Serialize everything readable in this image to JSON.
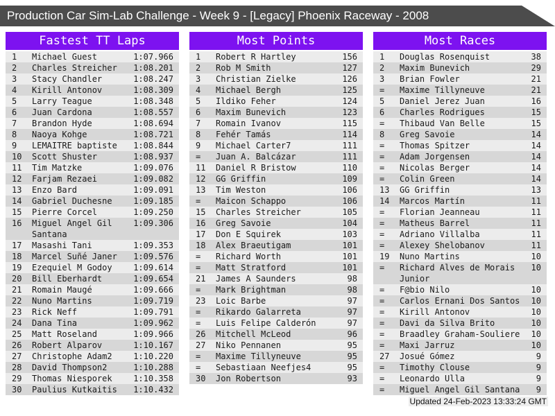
{
  "title_bar": {
    "title": "Production Car Sim-Lab Challenge - Week 9 - [Legacy] Phoenix Raceway - 2008"
  },
  "colors": {
    "accent_purple": "#7d12f0",
    "title_bar_bg": "#4c4c4c",
    "row_light": "#ececec",
    "row_dark": "#d7d7d7"
  },
  "footer": {
    "updated": "Updated 24-Feb-2023 13:33:24 GMT"
  },
  "sections": [
    {
      "title": "Fastest TT Laps",
      "rows": [
        {
          "rank": "1",
          "name": "Michael Guest",
          "value": "1:07.966"
        },
        {
          "rank": "2",
          "name": "Charles Streicher",
          "value": "1:08.201"
        },
        {
          "rank": "3",
          "name": "Stacy Chandler",
          "value": "1:08.247"
        },
        {
          "rank": "4",
          "name": "Kirill Antonov",
          "value": "1:08.309"
        },
        {
          "rank": "5",
          "name": "Larry Teague",
          "value": "1:08.348"
        },
        {
          "rank": "6",
          "name": "Juan Cardona",
          "value": "1:08.557"
        },
        {
          "rank": "7",
          "name": "Brandon Hyde",
          "value": "1:08.694"
        },
        {
          "rank": "8",
          "name": "Naoya Kohge",
          "value": "1:08.721"
        },
        {
          "rank": "9",
          "name": "LEMAITRE baptiste",
          "value": "1:08.844"
        },
        {
          "rank": "10",
          "name": "Scott Shuster",
          "value": "1:08.937"
        },
        {
          "rank": "11",
          "name": "Tim Matzke",
          "value": "1:09.076"
        },
        {
          "rank": "12",
          "name": "Farjam Rezaei",
          "value": "1:09.082"
        },
        {
          "rank": "13",
          "name": "Enzo Bard",
          "value": "1:09.091"
        },
        {
          "rank": "14",
          "name": "Gabriel Duchesne",
          "value": "1:09.185"
        },
        {
          "rank": "15",
          "name": "Pierre Corcel",
          "value": "1:09.250"
        },
        {
          "rank": "16",
          "name": "Miguel Angel Gil Santana",
          "value": "1:09.306"
        },
        {
          "rank": "17",
          "name": "Masashi Tani",
          "value": "1:09.353"
        },
        {
          "rank": "18",
          "name": "Marcel Suñé Janer",
          "value": "1:09.576"
        },
        {
          "rank": "19",
          "name": "Ezequiel M Godoy",
          "value": "1:09.614"
        },
        {
          "rank": "20",
          "name": "Bill Eberhardt",
          "value": "1:09.654"
        },
        {
          "rank": "21",
          "name": "Romain Maugé",
          "value": "1:09.666"
        },
        {
          "rank": "22",
          "name": "Nuno Martins",
          "value": "1:09.719"
        },
        {
          "rank": "23",
          "name": "Rick Neff",
          "value": "1:09.791"
        },
        {
          "rank": "24",
          "name": "Dana Tina",
          "value": "1:09.962"
        },
        {
          "rank": "25",
          "name": "Matt Roseland",
          "value": "1:09.966"
        },
        {
          "rank": "26",
          "name": "Robert Alparov",
          "value": "1:10.167"
        },
        {
          "rank": "27",
          "name": "Christophe Adam2",
          "value": "1:10.220"
        },
        {
          "rank": "28",
          "name": "David Thompson2",
          "value": "1:10.288"
        },
        {
          "rank": "29",
          "name": "Thomas Niesporek",
          "value": "1:10.358"
        },
        {
          "rank": "30",
          "name": "Paulius Kutkaitis",
          "value": "1:10.432"
        }
      ]
    },
    {
      "title": "Most Points",
      "rows": [
        {
          "rank": "1",
          "name": "Robert R Hartley",
          "value": "156"
        },
        {
          "rank": "2",
          "name": "Rob M Smith",
          "value": "127"
        },
        {
          "rank": "3",
          "name": "Christian Zielke",
          "value": "126"
        },
        {
          "rank": "4",
          "name": "Michael Bergh",
          "value": "125"
        },
        {
          "rank": "5",
          "name": "Ildiko Feher",
          "value": "124"
        },
        {
          "rank": "6",
          "name": "Maxim Bunevich",
          "value": "123"
        },
        {
          "rank": "7",
          "name": "Romain Ivanov",
          "value": "115"
        },
        {
          "rank": "8",
          "name": "Fehér Tamás",
          "value": "114"
        },
        {
          "rank": "9",
          "name": "Michael Carter7",
          "value": "111"
        },
        {
          "rank": "=",
          "name": "Juan A. Balcázar",
          "value": "111"
        },
        {
          "rank": "11",
          "name": "Daniel R Bristow",
          "value": "110"
        },
        {
          "rank": "12",
          "name": "GG Griffin",
          "value": "109"
        },
        {
          "rank": "13",
          "name": "Tim Weston",
          "value": "106"
        },
        {
          "rank": "=",
          "name": "Maicon Schappo",
          "value": "106"
        },
        {
          "rank": "15",
          "name": "Charles Streicher",
          "value": "105"
        },
        {
          "rank": "16",
          "name": "Greg Savoie",
          "value": "104"
        },
        {
          "rank": "17",
          "name": "Don E Squirek",
          "value": "103"
        },
        {
          "rank": "18",
          "name": "Alex Braeutigam",
          "value": "101"
        },
        {
          "rank": "=",
          "name": "Richard Worth",
          "value": "101"
        },
        {
          "rank": "=",
          "name": "Matt Stratford",
          "value": "101"
        },
        {
          "rank": "21",
          "name": "James A Saunders",
          "value": "98"
        },
        {
          "rank": "=",
          "name": "Mark Brightman",
          "value": "98"
        },
        {
          "rank": "23",
          "name": "Loic Barbe",
          "value": "97"
        },
        {
          "rank": "=",
          "name": "Rikardo Galarreta",
          "value": "97"
        },
        {
          "rank": "=",
          "name": "Luis Felipe Calderón",
          "value": "97"
        },
        {
          "rank": "26",
          "name": "Mitchell McLeod",
          "value": "96"
        },
        {
          "rank": "27",
          "name": "Niko Pennanen",
          "value": "95"
        },
        {
          "rank": "=",
          "name": "Maxime Tillyneuve",
          "value": "95"
        },
        {
          "rank": "=",
          "name": "Sebastiaan Neefjes4",
          "value": "95"
        },
        {
          "rank": "30",
          "name": "Jon Robertson",
          "value": "93"
        }
      ]
    },
    {
      "title": "Most Races",
      "rows": [
        {
          "rank": "1",
          "name": "Douglas Rosenquist",
          "value": "38"
        },
        {
          "rank": "2",
          "name": "Maxim Bunevich",
          "value": "29"
        },
        {
          "rank": "3",
          "name": "Brian Fowler",
          "value": "21"
        },
        {
          "rank": "=",
          "name": "Maxime Tillyneuve",
          "value": "21"
        },
        {
          "rank": "5",
          "name": "Daniel Jerez Juan",
          "value": "16"
        },
        {
          "rank": "6",
          "name": "Charles Rodrigues",
          "value": "15"
        },
        {
          "rank": "=",
          "name": "Thibaud Van Belle",
          "value": "15"
        },
        {
          "rank": "8",
          "name": "Greg Savoie",
          "value": "14"
        },
        {
          "rank": "=",
          "name": "Thomas Spitzer",
          "value": "14"
        },
        {
          "rank": "=",
          "name": "Adam Jorgensen",
          "value": "14"
        },
        {
          "rank": "=",
          "name": "Nicolas Berger",
          "value": "14"
        },
        {
          "rank": "=",
          "name": "Colin Green",
          "value": "14"
        },
        {
          "rank": "13",
          "name": "GG Griffin",
          "value": "13"
        },
        {
          "rank": "14",
          "name": "Marcos Martín",
          "value": "11"
        },
        {
          "rank": "=",
          "name": "Florian Jeanneau",
          "value": "11"
        },
        {
          "rank": "=",
          "name": "Matheus Barrel",
          "value": "11"
        },
        {
          "rank": "=",
          "name": "Adriano Villalba",
          "value": "11"
        },
        {
          "rank": "=",
          "name": "Alexey Shelobanov",
          "value": "11"
        },
        {
          "rank": "19",
          "name": "Nuno Martins",
          "value": "10"
        },
        {
          "rank": "=",
          "name": "Richard Alves de Morais Junior",
          "value": "10"
        },
        {
          "rank": "=",
          "name": "F@bio Nilo",
          "value": "10"
        },
        {
          "rank": "=",
          "name": "Carlos Ernani Dos Santos",
          "value": "10"
        },
        {
          "rank": "=",
          "name": "Kirill Antonov",
          "value": "10"
        },
        {
          "rank": "=",
          "name": "Davi da Silva Brito",
          "value": "10"
        },
        {
          "rank": "=",
          "name": "Braadley Graham-Souliere",
          "value": "10"
        },
        {
          "rank": "=",
          "name": "Maxi Jarruz",
          "value": "10"
        },
        {
          "rank": "27",
          "name": "Josué Gómez",
          "value": "9"
        },
        {
          "rank": "=",
          "name": "Timothy Clouse",
          "value": "9"
        },
        {
          "rank": "=",
          "name": "Leonardo Ulla",
          "value": "9"
        },
        {
          "rank": "=",
          "name": "Miguel Angel Gil Santana",
          "value": "9"
        }
      ]
    }
  ]
}
